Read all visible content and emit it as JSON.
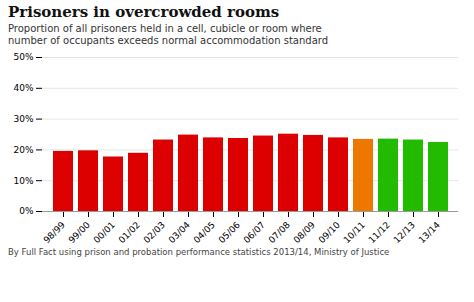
{
  "chart_data": {
    "type": "bar",
    "title": "Prisoners in overcrowded rooms",
    "subtitle": "Proportion of all prisoners held in a cell, cubicle or room where\nnumber of occupants exceeds normal accommodation standard",
    "caption": "By Full Fact using prison and probation performance statistics 2013/14, Ministry of Justice",
    "categories": [
      "98/99",
      "99/00",
      "00/01",
      "01/02",
      "02/03",
      "03/04",
      "04/05",
      "05/06",
      "06/07",
      "07/08",
      "08/09",
      "09/10",
      "10/11",
      "11/12",
      "12/13",
      "13/14"
    ],
    "values": [
      19.5,
      19.7,
      17.7,
      18.9,
      23.2,
      24.8,
      23.9,
      23.7,
      24.5,
      25.1,
      24.7,
      23.9,
      23.4,
      23.5,
      23.2,
      22.4
    ],
    "colors": [
      "#dd0000",
      "#dd0000",
      "#dd0000",
      "#dd0000",
      "#dd0000",
      "#dd0000",
      "#dd0000",
      "#dd0000",
      "#dd0000",
      "#dd0000",
      "#dd0000",
      "#dd0000",
      "#ee7700",
      "#22bb00",
      "#22bb00",
      "#22bb00"
    ],
    "ylim": [
      0,
      50
    ],
    "yticks": [
      {
        "value": 0,
        "label": "0%"
      },
      {
        "value": 10,
        "label": "10%"
      },
      {
        "value": 20,
        "label": "20%"
      },
      {
        "value": 30,
        "label": "30%"
      },
      {
        "value": 40,
        "label": "40%"
      },
      {
        "value": 50,
        "label": "50%"
      }
    ],
    "grid": true
  }
}
